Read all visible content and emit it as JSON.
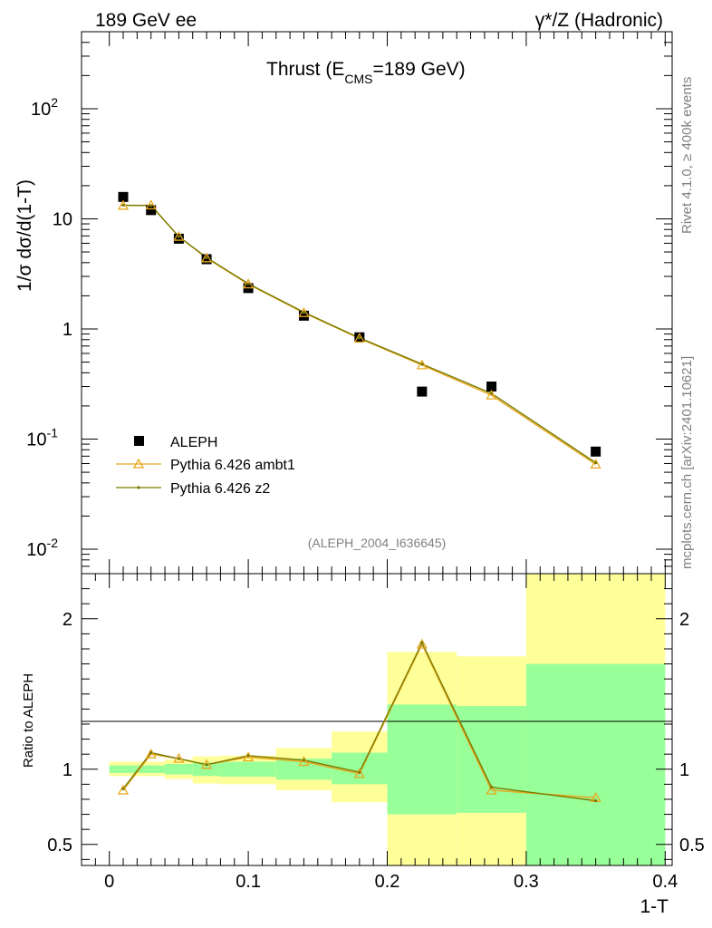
{
  "header": {
    "left": "189 GeV ee",
    "right": "γ*/Z (Hadronic)"
  },
  "side_labels": {
    "rivet": "Rivet 4.1.0, ≥ 400k events",
    "mcplots": "mcplots.cern.ch [arXiv:2401.10621]"
  },
  "chart_data": [
    {
      "type": "scatter",
      "panel": "main",
      "title_main": "Thrust (E",
      "title_sub": "CMS",
      "title_rest": "=189 GeV)",
      "analysis_tag": "(ALEPH_2004_I636645)",
      "ylabel": "1/σ  dσ/d(1-T)",
      "yscale": "log",
      "ylim": [
        0.006,
        500
      ],
      "xlim": [
        -0.02,
        0.405
      ],
      "yticks": [
        {
          "value": 0.01,
          "label": "10",
          "sup": "-2"
        },
        {
          "value": 0.1,
          "label": "10",
          "sup": "-1"
        },
        {
          "value": 1,
          "label": "1",
          "sup": ""
        },
        {
          "value": 10,
          "label": "10",
          "sup": ""
        },
        {
          "value": 100,
          "label": "10",
          "sup": "2"
        }
      ],
      "series": [
        {
          "name": "ALEPH",
          "style": "marker-square",
          "color": "#000000",
          "x": [
            0.01,
            0.03,
            0.05,
            0.07,
            0.1,
            0.14,
            0.18,
            0.225,
            0.275,
            0.35
          ],
          "y": [
            15.8,
            12.0,
            6.6,
            4.3,
            2.35,
            1.32,
            0.84,
            0.27,
            0.3,
            0.077
          ]
        },
        {
          "name": "Pythia 6.426 ambt1",
          "style": "line-triangle",
          "color": "#e8a81e",
          "x": [
            0.01,
            0.03,
            0.05,
            0.07,
            0.1,
            0.14,
            0.18,
            0.225,
            0.275,
            0.35
          ],
          "y": [
            13.2,
            13.3,
            6.9,
            4.4,
            2.55,
            1.4,
            0.82,
            0.47,
            0.25,
            0.059
          ]
        },
        {
          "name": "Pythia 6.426 z2",
          "style": "line-dot",
          "color": "#7a7a00",
          "x": [
            0.01,
            0.03,
            0.05,
            0.07,
            0.1,
            0.14,
            0.18,
            0.225,
            0.275,
            0.35
          ],
          "y": [
            13.3,
            13.2,
            6.9,
            4.45,
            2.58,
            1.42,
            0.83,
            0.48,
            0.26,
            0.061
          ]
        }
      ],
      "legend": [
        "ALEPH",
        "Pythia 6.426 ambt1",
        "Pythia 6.426 z2"
      ]
    },
    {
      "type": "line",
      "panel": "ratio",
      "ylabel": "Ratio to ALEPH",
      "xlabel": "1-T",
      "ylim": [
        0.36,
        2.3
      ],
      "xlim": [
        -0.02,
        0.405
      ],
      "yticks": [
        {
          "value": 0.5,
          "label": "0.5"
        },
        {
          "value": 1,
          "label": "1"
        },
        {
          "value": 2,
          "label": "2"
        }
      ],
      "xticks": [
        {
          "value": 0,
          "label": "0"
        },
        {
          "value": 0.1,
          "label": "0.1"
        },
        {
          "value": 0.2,
          "label": "0.2"
        },
        {
          "value": 0.3,
          "label": "0.3"
        },
        {
          "value": 0.4,
          "label": "0.4"
        }
      ],
      "bands": [
        {
          "x0": 0.0,
          "x1": 0.02,
          "y_lo": 0.955,
          "y_hi": 1.05,
          "g_lo": 0.975,
          "g_hi": 1.025
        },
        {
          "x0": 0.02,
          "x1": 0.04,
          "y_lo": 0.955,
          "y_hi": 1.05,
          "g_lo": 0.975,
          "g_hi": 1.025
        },
        {
          "x0": 0.04,
          "x1": 0.06,
          "y_lo": 0.935,
          "y_hi": 1.065,
          "g_lo": 0.965,
          "g_hi": 1.035
        },
        {
          "x0": 0.06,
          "x1": 0.08,
          "y_lo": 0.905,
          "y_hi": 1.085,
          "g_lo": 0.955,
          "g_hi": 1.045
        },
        {
          "x0": 0.08,
          "x1": 0.12,
          "y_lo": 0.9,
          "y_hi": 1.09,
          "g_lo": 0.95,
          "g_hi": 1.05
        },
        {
          "x0": 0.12,
          "x1": 0.16,
          "y_lo": 0.86,
          "y_hi": 1.14,
          "g_lo": 0.93,
          "g_hi": 1.07
        },
        {
          "x0": 0.16,
          "x1": 0.2,
          "y_lo": 0.78,
          "y_hi": 1.25,
          "g_lo": 0.9,
          "g_hi": 1.11
        },
        {
          "x0": 0.2,
          "x1": 0.25,
          "y_lo": 0.36,
          "y_hi": 1.78,
          "g_lo": 0.7,
          "g_hi": 1.43
        },
        {
          "x0": 0.25,
          "x1": 0.3,
          "y_lo": 0.36,
          "y_hi": 1.75,
          "g_lo": 0.71,
          "g_hi": 1.42
        },
        {
          "x0": 0.3,
          "x1": 0.4,
          "y_lo": 0.36,
          "y_hi": 2.3,
          "g_lo": 0.36,
          "g_hi": 1.7
        }
      ],
      "series": [
        {
          "name": "Pythia 6.426 ambt1",
          "style": "line-triangle",
          "color": "#e8a81e",
          "x": [
            0.01,
            0.03,
            0.05,
            0.07,
            0.1,
            0.14,
            0.18,
            0.225,
            0.275,
            0.35
          ],
          "y": [
            0.86,
            1.1,
            1.07,
            1.03,
            1.08,
            1.05,
            0.97,
            1.83,
            0.86,
            0.81
          ]
        },
        {
          "name": "Pythia 6.426 z2",
          "style": "line-dot",
          "color": "#7a7a00",
          "x": [
            0.01,
            0.03,
            0.05,
            0.07,
            0.1,
            0.14,
            0.18,
            0.225,
            0.275,
            0.35
          ],
          "y": [
            0.87,
            1.11,
            1.07,
            1.03,
            1.09,
            1.06,
            0.98,
            1.84,
            0.88,
            0.79
          ]
        }
      ]
    }
  ],
  "colors": {
    "band_yellow": "#ffff99",
    "band_green": "#99ff99",
    "ambt1": "#e8a81e",
    "z2": "#7a7a00"
  }
}
